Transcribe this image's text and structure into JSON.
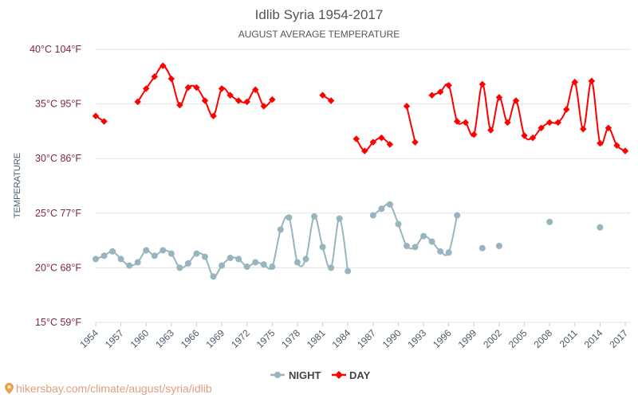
{
  "chart_data": {
    "type": "line",
    "title": "Idlib Syria 1954-2017",
    "subtitle": "AUGUST AVERAGE TEMPERATURE",
    "ylabel": "TEMPERATURE",
    "xlabel": "",
    "xlim": [
      1954,
      2017
    ],
    "ylim": [
      15,
      40
    ],
    "y_ticks": [
      {
        "c": 40,
        "label": "40°C 104°F"
      },
      {
        "c": 35,
        "label": "35°C 95°F"
      },
      {
        "c": 30,
        "label": "30°C 86°F"
      },
      {
        "c": 25,
        "label": "25°C 77°F"
      },
      {
        "c": 20,
        "label": "20°C 68°F"
      },
      {
        "c": 15,
        "label": "15°C 59°F"
      }
    ],
    "x_ticks": [
      "1954",
      "1957",
      "1960",
      "1963",
      "1966",
      "1969",
      "1972",
      "1975",
      "1978",
      "1981",
      "1984",
      "1987",
      "1990",
      "1993",
      "1996",
      "1999",
      "2002",
      "2005",
      "2008",
      "2011",
      "2014",
      "2017"
    ],
    "grid": true,
    "legend_position": "bottom",
    "x": [
      1954,
      1955,
      1956,
      1957,
      1958,
      1959,
      1960,
      1961,
      1962,
      1963,
      1964,
      1965,
      1966,
      1967,
      1968,
      1969,
      1970,
      1971,
      1972,
      1973,
      1974,
      1975,
      1976,
      1977,
      1978,
      1979,
      1980,
      1981,
      1982,
      1983,
      1984,
      1985,
      1986,
      1987,
      1988,
      1989,
      1990,
      1991,
      1992,
      1993,
      1994,
      1995,
      1996,
      1997,
      1998,
      1999,
      2000,
      2001,
      2002,
      2003,
      2004,
      2005,
      2006,
      2007,
      2008,
      2009,
      2010,
      2011,
      2012,
      2013,
      2014,
      2015,
      2016,
      2017
    ],
    "series": [
      {
        "name": "NIGHT",
        "color": "#96b5bf",
        "values": [
          20.8,
          21.1,
          21.5,
          20.8,
          20.2,
          20.5,
          21.6,
          21.1,
          21.6,
          21.3,
          20.0,
          20.4,
          21.3,
          21.0,
          19.2,
          20.2,
          20.9,
          20.8,
          20.1,
          20.5,
          20.3,
          20.1,
          23.5,
          24.6,
          20.5,
          20.8,
          24.7,
          21.9,
          20.0,
          24.5,
          19.7,
          null,
          null,
          24.8,
          25.4,
          25.8,
          24.0,
          22.0,
          21.9,
          22.9,
          22.4,
          21.5,
          21.4,
          24.8,
          null,
          null,
          21.8,
          null,
          22.0,
          null,
          null,
          null,
          null,
          null,
          24.2,
          null,
          null,
          null,
          null,
          null,
          23.7,
          null,
          null,
          null
        ]
      },
      {
        "name": "DAY",
        "color": "#ff0000",
        "values": [
          33.9,
          33.4,
          null,
          null,
          null,
          35.2,
          36.4,
          37.5,
          38.5,
          37.3,
          34.9,
          36.5,
          36.5,
          35.3,
          33.9,
          36.4,
          35.8,
          35.3,
          35.2,
          36.3,
          34.8,
          35.4,
          null,
          null,
          null,
          null,
          null,
          35.8,
          35.3,
          null,
          null,
          31.8,
          30.7,
          31.5,
          31.9,
          31.3,
          null,
          34.8,
          31.5,
          null,
          35.8,
          36.1,
          36.7,
          33.4,
          33.3,
          32.2,
          36.8,
          32.6,
          35.6,
          33.3,
          35.3,
          32.1,
          31.9,
          32.8,
          33.3,
          33.3,
          34.5,
          37.0,
          32.7,
          37.1,
          31.4,
          32.8,
          31.2,
          30.7
        ]
      }
    ]
  },
  "footer": {
    "source": "hikersbay.com/climate/august/syria/idlib"
  }
}
